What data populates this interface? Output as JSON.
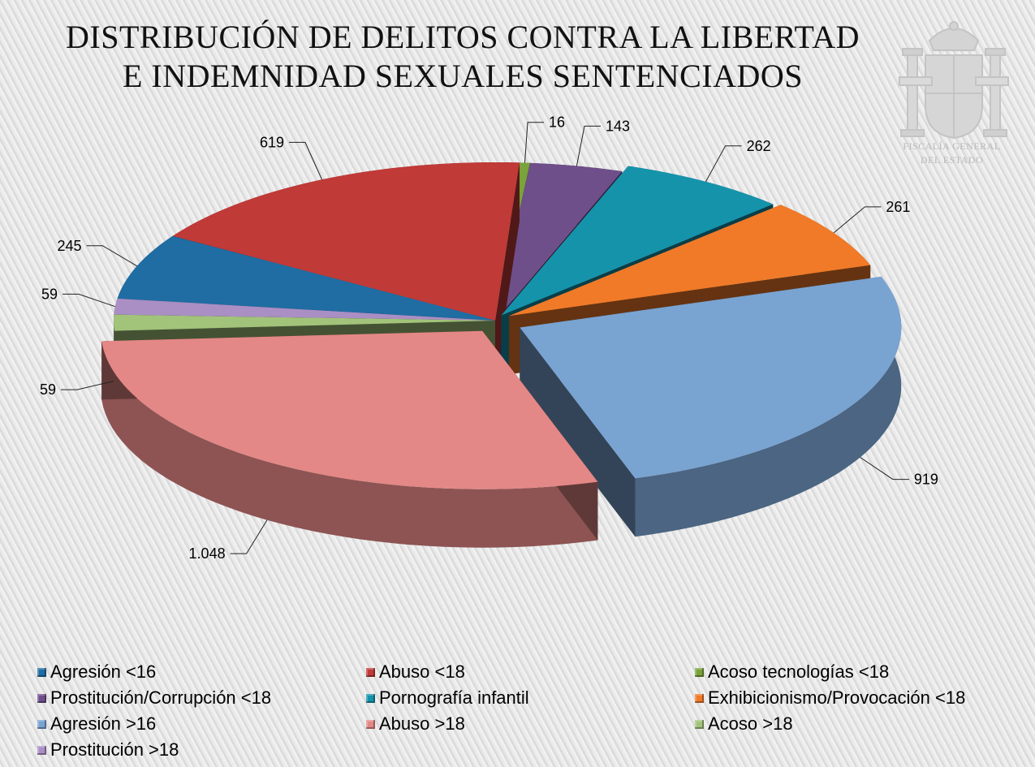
{
  "title_line1": "DISTRIBUCIÓN DE DELITOS CONTRA LA LIBERTAD",
  "title_line2": "E INDEMNIDAD SEXUALES SENTENCIADOS",
  "logo": {
    "icon": "coat-of-arms-icon",
    "line1": "FISCALÍA GENERAL",
    "line2": "DEL ESTADO"
  },
  "chart_data": {
    "type": "pie",
    "title": "DISTRIBUCIÓN DE DELITOS CONTRA LA LIBERTAD E INDEMNIDAD SEXUALES SENTENCIADOS",
    "legend_position": "bottom",
    "slices": [
      {
        "name": "Agresión <16",
        "value": 245,
        "label": "245",
        "color": "#1f6da3"
      },
      {
        "name": "Abuso <18",
        "value": 619,
        "label": "619",
        "color": "#c03a38"
      },
      {
        "name": "Acoso tecnologías <18",
        "value": 16,
        "label": "16",
        "color": "#7aa33a"
      },
      {
        "name": "Prostitución/Corrupción <18",
        "value": 143,
        "label": "143",
        "color": "#6e4f8a"
      },
      {
        "name": "Pornografía infantil",
        "value": 262,
        "label": "262",
        "color": "#1593ab"
      },
      {
        "name": "Exhibicionismo/Provocación <18",
        "value": 261,
        "label": "261",
        "color": "#f07a28"
      },
      {
        "name": "Agresión >16",
        "value": 919,
        "label": "919",
        "color": "#79a3d1"
      },
      {
        "name": "Abuso >18",
        "value": 1048,
        "label": "1.048",
        "color": "#e38886"
      },
      {
        "name": "Acoso >18",
        "value": 59,
        "label": "59",
        "color": "#a2c37a"
      },
      {
        "name": "Prostitución >18",
        "value": 59,
        "label": "59",
        "color": "#a98fc4"
      }
    ]
  }
}
